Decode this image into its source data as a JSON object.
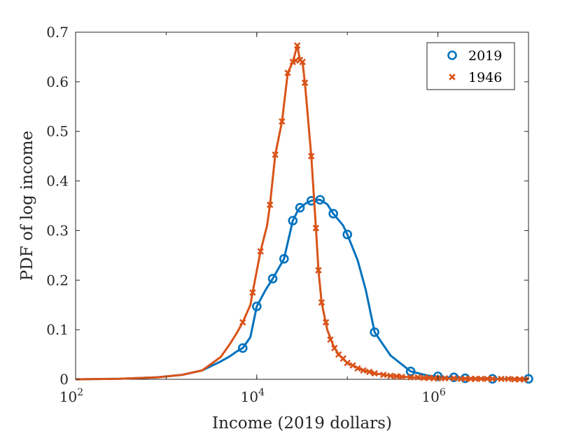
{
  "chart_data": {
    "type": "line",
    "title": "",
    "xlabel": "Income (2019 dollars)",
    "ylabel": "PDF of log income",
    "xscale": "log",
    "xlim": [
      100,
      10000000
    ],
    "ylim": [
      0,
      0.7
    ],
    "x_ticks": [
      {
        "value": 100,
        "base": "10",
        "exp": "2"
      },
      {
        "value": 10000,
        "base": "10",
        "exp": "4"
      },
      {
        "value": 1000000,
        "base": "10",
        "exp": "6"
      }
    ],
    "y_ticks": [
      "0",
      "0.1",
      "0.2",
      "0.3",
      "0.4",
      "0.5",
      "0.6",
      "0.7"
    ],
    "legend_position": "top-right",
    "series": [
      {
        "name": "2019",
        "color": "#0072BD",
        "marker": "circle",
        "curve": [
          [
            100,
            0.0
          ],
          [
            300,
            0.001
          ],
          [
            800,
            0.004
          ],
          [
            1500,
            0.009
          ],
          [
            2500,
            0.018
          ],
          [
            4000,
            0.036
          ],
          [
            5000,
            0.046
          ],
          [
            6000,
            0.056
          ],
          [
            7000,
            0.063
          ],
          [
            8500,
            0.085
          ],
          [
            10000,
            0.147
          ],
          [
            12500,
            0.18
          ],
          [
            15000,
            0.203
          ],
          [
            20000,
            0.243
          ],
          [
            25000,
            0.32
          ],
          [
            28000,
            0.338
          ],
          [
            30000,
            0.346
          ],
          [
            35000,
            0.355
          ],
          [
            40000,
            0.36
          ],
          [
            45000,
            0.362
          ],
          [
            50000,
            0.362
          ],
          [
            60000,
            0.353
          ],
          [
            70000,
            0.334
          ],
          [
            90000,
            0.31
          ],
          [
            100000,
            0.292
          ],
          [
            130000,
            0.24
          ],
          [
            160000,
            0.18
          ],
          [
            200000,
            0.095
          ],
          [
            300000,
            0.048
          ],
          [
            500000,
            0.016
          ],
          [
            800000,
            0.007
          ],
          [
            1200000,
            0.004
          ],
          [
            2000000,
            0.002
          ],
          [
            4000000,
            0.001
          ],
          [
            10000000,
            0.001
          ]
        ],
        "markers": [
          [
            7000,
            0.063
          ],
          [
            10000,
            0.147
          ],
          [
            15000,
            0.203
          ],
          [
            20000,
            0.243
          ],
          [
            25000,
            0.32
          ],
          [
            30000,
            0.346
          ],
          [
            40000,
            0.36
          ],
          [
            50000,
            0.362
          ],
          [
            70000,
            0.334
          ],
          [
            100000,
            0.292
          ],
          [
            200000,
            0.095
          ],
          [
            500000,
            0.016
          ],
          [
            1000000,
            0.006
          ],
          [
            1500000,
            0.004
          ],
          [
            2000000,
            0.002
          ],
          [
            4000000,
            0.001
          ],
          [
            10000000,
            0.001
          ]
        ]
      },
      {
        "name": "1946",
        "color": "#D95319",
        "marker": "x",
        "curve": [
          [
            100,
            0.0
          ],
          [
            300,
            0.001
          ],
          [
            800,
            0.004
          ],
          [
            1500,
            0.009
          ],
          [
            2500,
            0.018
          ],
          [
            4000,
            0.045
          ],
          [
            5000,
            0.07
          ],
          [
            6000,
            0.093
          ],
          [
            7000,
            0.115
          ],
          [
            8500,
            0.15
          ],
          [
            9000,
            0.175
          ],
          [
            11000,
            0.258
          ],
          [
            13000,
            0.31
          ],
          [
            14000,
            0.352
          ],
          [
            16000,
            0.453
          ],
          [
            19000,
            0.52
          ],
          [
            22000,
            0.618
          ],
          [
            25000,
            0.64
          ],
          [
            28000,
            0.673
          ],
          [
            30000,
            0.644
          ],
          [
            32000,
            0.64
          ],
          [
            34000,
            0.598
          ],
          [
            40000,
            0.45
          ],
          [
            45000,
            0.305
          ],
          [
            48000,
            0.22
          ],
          [
            52000,
            0.155
          ],
          [
            60000,
            0.1
          ],
          [
            70000,
            0.068
          ],
          [
            80000,
            0.05
          ],
          [
            100000,
            0.033
          ],
          [
            150000,
            0.018
          ],
          [
            200000,
            0.012
          ],
          [
            300000,
            0.007
          ],
          [
            500000,
            0.004
          ],
          [
            1000000,
            0.002
          ],
          [
            2000000,
            0.001
          ],
          [
            10000000,
            0.0
          ]
        ],
        "markers": [
          [
            7000,
            0.115
          ],
          [
            9000,
            0.175
          ],
          [
            11000,
            0.258
          ],
          [
            14000,
            0.352
          ],
          [
            16000,
            0.453
          ],
          [
            19000,
            0.52
          ],
          [
            22000,
            0.618
          ],
          [
            25000,
            0.64
          ],
          [
            27000,
            0.643
          ],
          [
            28000,
            0.673
          ],
          [
            30000,
            0.644
          ],
          [
            32000,
            0.64
          ],
          [
            34000,
            0.598
          ],
          [
            40000,
            0.45
          ],
          [
            45000,
            0.305
          ],
          [
            48000,
            0.22
          ],
          [
            52000,
            0.155
          ],
          [
            58000,
            0.115
          ],
          [
            65000,
            0.08
          ],
          [
            72000,
            0.063
          ],
          [
            80000,
            0.05
          ],
          [
            90000,
            0.042
          ],
          [
            100000,
            0.033
          ],
          [
            115000,
            0.028
          ],
          [
            130000,
            0.022
          ],
          [
            150000,
            0.018
          ],
          [
            175000,
            0.015
          ],
          [
            200000,
            0.012
          ],
          [
            250000,
            0.009
          ],
          [
            300000,
            0.007
          ],
          [
            350000,
            0.006
          ],
          [
            400000,
            0.005
          ],
          [
            500000,
            0.004
          ],
          [
            600000,
            0.004
          ],
          [
            700000,
            0.003
          ],
          [
            800000,
            0.003
          ],
          [
            900000,
            0.002
          ],
          [
            1000000,
            0.002
          ],
          [
            1200000,
            0.002
          ],
          [
            1500000,
            0.002
          ],
          [
            1800000,
            0.001
          ],
          [
            2000000,
            0.001
          ],
          [
            2300000,
            0.001
          ],
          [
            2600000,
            0.001
          ],
          [
            3000000,
            0.001
          ],
          [
            3500000,
            0.001
          ],
          [
            4000000,
            0.001
          ],
          [
            5000000,
            0.001
          ],
          [
            6000000,
            0.001
          ],
          [
            7000000,
            0.0
          ],
          [
            8000000,
            0.0
          ],
          [
            9000000,
            0.0
          ]
        ]
      }
    ]
  }
}
